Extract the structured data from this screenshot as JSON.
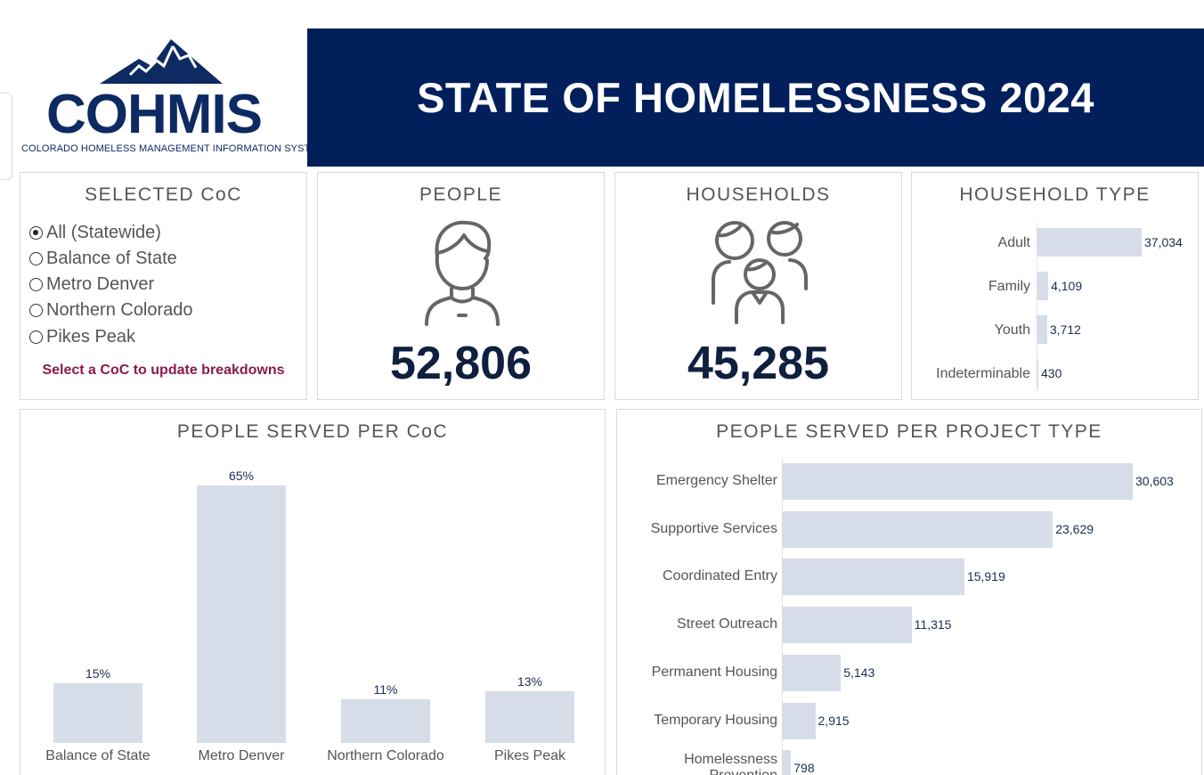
{
  "logo": {
    "word": "COHMIS",
    "subtitle": "COLORADO HOMELESS MANAGEMENT INFORMATION SYSTEM"
  },
  "banner": {
    "title": "STATE OF HOMELESSNESS 2024",
    "color": "#001f5b"
  },
  "selected_coc": {
    "title": "SELECTED CoC",
    "options": [
      {
        "label": "All (Statewide)",
        "selected": true
      },
      {
        "label": "Balance of State",
        "selected": false
      },
      {
        "label": "Metro Denver",
        "selected": false
      },
      {
        "label": "Northern Colorado",
        "selected": false
      },
      {
        "label": "Pikes Peak",
        "selected": false
      }
    ],
    "hint": "Select a CoC to update breakdowns"
  },
  "people": {
    "title": "PEOPLE",
    "value": "52,806",
    "icon": "person-icon"
  },
  "households": {
    "title": "HOUSEHOLDS",
    "value": "45,285",
    "icon": "family-icon"
  },
  "chart_data": [
    {
      "id": "household_type",
      "type": "bar",
      "orientation": "horizontal",
      "title": "HOUSEHOLD TYPE",
      "categories": [
        "Adult",
        "Family",
        "Youth",
        "Indeterminable"
      ],
      "values": [
        37034,
        4109,
        3712,
        430
      ],
      "value_labels": [
        "37,034",
        "4,109",
        "3,712",
        "430"
      ],
      "xlim": [
        0,
        37034
      ],
      "bar_color": "#d7dde8"
    },
    {
      "id": "people_per_coc",
      "type": "bar",
      "orientation": "vertical",
      "title": "PEOPLE SERVED PER CoC",
      "categories": [
        "Balance of State",
        "Metro Denver",
        "Northern Colorado",
        "Pikes Peak"
      ],
      "values": [
        15,
        65,
        11,
        13
      ],
      "value_labels": [
        "15%",
        "65%",
        "11%",
        "13%"
      ],
      "ylim": [
        0,
        65
      ],
      "bar_color": "#d7dde8"
    },
    {
      "id": "people_per_project",
      "type": "bar",
      "orientation": "horizontal",
      "title": "PEOPLE SERVED PER PROJECT TYPE",
      "categories": [
        "Emergency Shelter",
        "Supportive Services",
        "Coordinated Entry",
        "Street Outreach",
        "Permanent Housing",
        "Temporary Housing",
        "Homelessness Prevention"
      ],
      "values": [
        30603,
        23629,
        15919,
        11315,
        5143,
        2915,
        798
      ],
      "value_labels": [
        "30,603",
        "23,629",
        "15,919",
        "11,315",
        "5,143",
        "2,915",
        "798"
      ],
      "xlim": [
        0,
        30603
      ],
      "bar_color": "#d7dde8"
    }
  ]
}
